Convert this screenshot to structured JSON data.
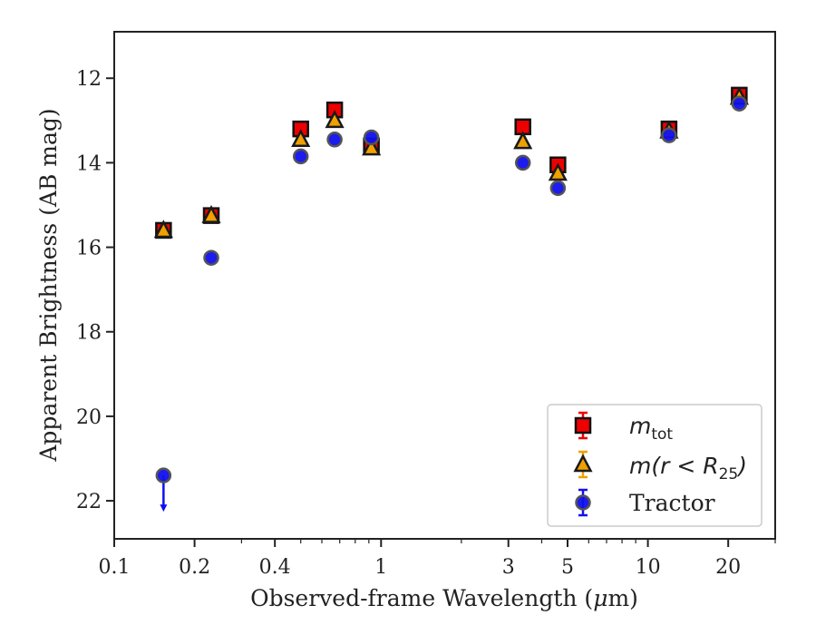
{
  "chart_data": {
    "type": "scatter",
    "xlabel_prefix": "Observed-frame Wavelength (",
    "xlabel_mu": "μ",
    "xlabel_suffix": "m)",
    "ylabel": "Apparent Brightness (AB mag)",
    "xscale": "log",
    "xlim": [
      0.1,
      30
    ],
    "ylim": [
      22.9,
      10.9
    ],
    "y_inverted": true,
    "x_ticks": [
      0.1,
      0.2,
      0.4,
      1,
      3,
      5,
      10,
      20
    ],
    "x_tick_labels": [
      "0.1",
      "0.2",
      "0.4",
      "1",
      "3",
      "5",
      "10",
      "20"
    ],
    "y_ticks": [
      12,
      14,
      16,
      18,
      20,
      22
    ],
    "y_tick_labels": [
      "12",
      "14",
      "16",
      "18",
      "20",
      "22"
    ],
    "legend_position": "lower right",
    "series": [
      {
        "name_base": "m",
        "name_sub": "tot",
        "marker": "square",
        "color": "#ee0000",
        "points": [
          {
            "x": 0.153,
            "y": 15.6
          },
          {
            "x": 0.231,
            "y": 15.25
          },
          {
            "x": 0.5,
            "y": 13.2
          },
          {
            "x": 0.67,
            "y": 12.75
          },
          {
            "x": 0.92,
            "y": 13.6
          },
          {
            "x": 3.4,
            "y": 13.15
          },
          {
            "x": 4.6,
            "y": 14.05
          },
          {
            "x": 12.0,
            "y": 13.2
          },
          {
            "x": 22.0,
            "y": 12.4
          }
        ]
      },
      {
        "name_base": "m(r < R",
        "name_sub": "25",
        "name_end": ")",
        "marker": "triangle",
        "color": "#f0a000",
        "points": [
          {
            "x": 0.153,
            "y": 15.6
          },
          {
            "x": 0.231,
            "y": 15.25
          },
          {
            "x": 0.5,
            "y": 13.45
          },
          {
            "x": 0.67,
            "y": 13.0
          },
          {
            "x": 0.92,
            "y": 13.65
          },
          {
            "x": 3.4,
            "y": 13.5
          },
          {
            "x": 4.6,
            "y": 14.25
          },
          {
            "x": 12.0,
            "y": 13.25
          },
          {
            "x": 22.0,
            "y": 12.45
          }
        ]
      },
      {
        "name": "Tractor",
        "marker": "circle",
        "color": "#1010ee",
        "points": [
          {
            "x": 0.153,
            "y": 21.4,
            "upper_limit": true
          },
          {
            "x": 0.231,
            "y": 16.25
          },
          {
            "x": 0.5,
            "y": 13.85
          },
          {
            "x": 0.67,
            "y": 13.45
          },
          {
            "x": 0.92,
            "y": 13.4
          },
          {
            "x": 3.4,
            "y": 14.0
          },
          {
            "x": 4.6,
            "y": 14.6
          },
          {
            "x": 12.0,
            "y": 13.35
          },
          {
            "x": 22.0,
            "y": 12.6
          }
        ]
      }
    ]
  }
}
